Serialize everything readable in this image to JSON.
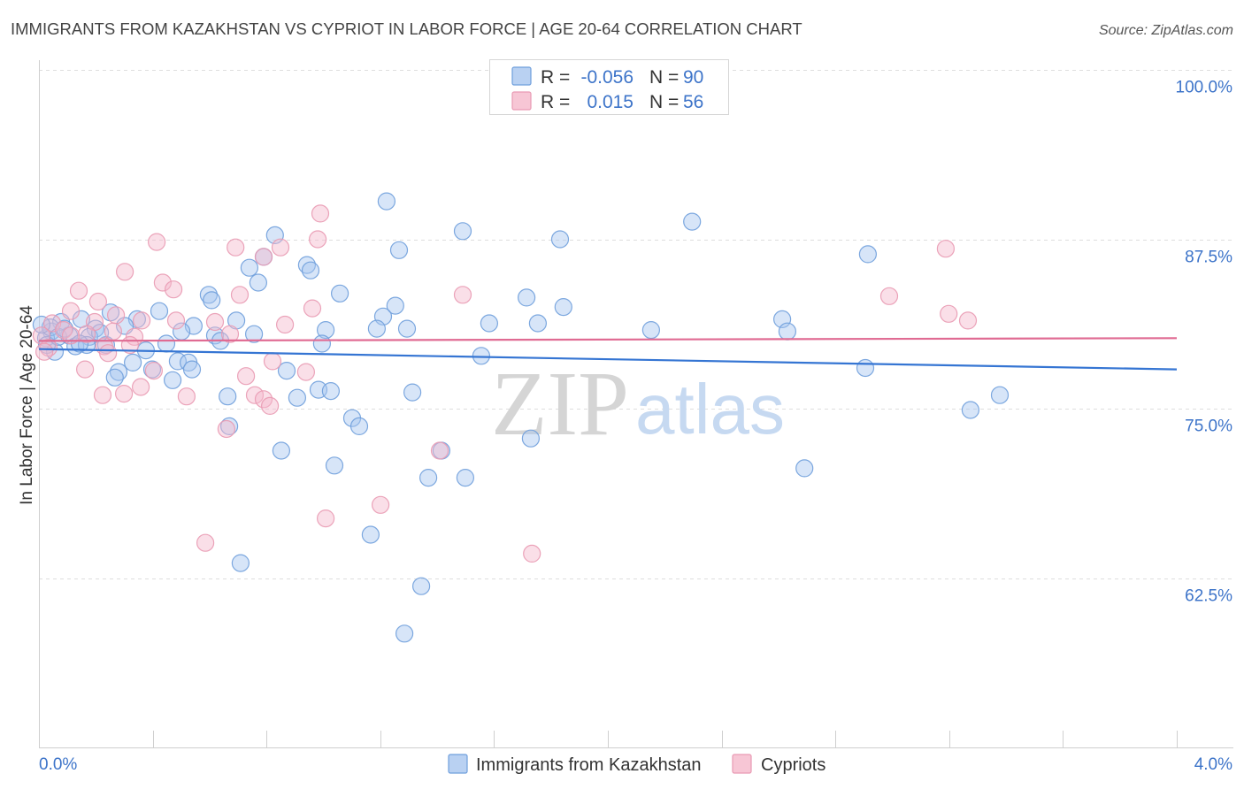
{
  "watermark": {
    "zip": "ZIP",
    "atlas": "atlas"
  },
  "chart_data": {
    "type": "scatter",
    "title": "IMMIGRANTS FROM KAZAKHSTAN VS CYPRIOT IN LABOR FORCE | AGE 20-64 CORRELATION CHART",
    "source": "Source: ZipAtlas.com",
    "xlabel": "",
    "ylabel": "In Labor Force | Age 20-64",
    "xlim": [
      0,
      4.0
    ],
    "ylim": [
      50,
      100
    ],
    "grid": true,
    "legend": "top-center",
    "x_ticks": [
      {
        "value": 0,
        "label": "0.0%"
      },
      {
        "value": 4.0,
        "label": "4.0%"
      }
    ],
    "x_tick_values": [
      0,
      0.4,
      0.8,
      1.2,
      1.6,
      2.0,
      2.4,
      2.8,
      3.2,
      3.6,
      4.0
    ],
    "y_ticks": [
      {
        "value": 100,
        "label": "100.0%"
      },
      {
        "value": 87.5,
        "label": "87.5%"
      },
      {
        "value": 75,
        "label": "75.0%"
      },
      {
        "value": 62.5,
        "label": "62.5%"
      }
    ],
    "series": [
      {
        "name": "Immigrants from Kazakhstan",
        "r_label": "R =",
        "r": "-0.056",
        "n_label": "N =",
        "n": "90",
        "color": "#a7c6ef",
        "stroke": "#6f9fdc",
        "line_color": "#3575d3",
        "trend": {
          "x": [
            0,
            4.0
          ],
          "y": [
            79.4,
            77.9
          ]
        },
        "points": [
          [
            1.222,
            90.3
          ],
          [
            2.296,
            88.8
          ],
          [
            1.49,
            88.1
          ],
          [
            0.83,
            87.8
          ],
          [
            1.832,
            87.5
          ],
          [
            1.266,
            86.7
          ],
          [
            2.914,
            86.4
          ],
          [
            0.79,
            86.2
          ],
          [
            0.74,
            85.4
          ],
          [
            0.942,
            85.6
          ],
          [
            0.955,
            85.2
          ],
          [
            0.771,
            84.3
          ],
          [
            1.058,
            83.5
          ],
          [
            0.597,
            83.4
          ],
          [
            0.607,
            83.0
          ],
          [
            1.714,
            83.2
          ],
          [
            1.253,
            82.6
          ],
          [
            1.844,
            82.5
          ],
          [
            0.423,
            82.2
          ],
          [
            0.252,
            82.1
          ],
          [
            1.21,
            81.8
          ],
          [
            2.613,
            81.6
          ],
          [
            0.149,
            81.6
          ],
          [
            0.345,
            81.6
          ],
          [
            0.694,
            81.5
          ],
          [
            1.583,
            81.3
          ],
          [
            1.754,
            81.3
          ],
          [
            0.078,
            81.4
          ],
          [
            0.302,
            81.1
          ],
          [
            0.544,
            81.1
          ],
          [
            0.501,
            80.7
          ],
          [
            1.008,
            80.8
          ],
          [
            1.188,
            80.9
          ],
          [
            1.294,
            80.9
          ],
          [
            2.152,
            80.8
          ],
          [
            2.631,
            80.7
          ],
          [
            0.199,
            80.9
          ],
          [
            0.756,
            80.5
          ],
          [
            0.619,
            80.4
          ],
          [
            0.638,
            80.0
          ],
          [
            0.177,
            80.3
          ],
          [
            0.044,
            80.7
          ],
          [
            0.025,
            80.2
          ],
          [
            0.106,
            80.4
          ],
          [
            0.236,
            79.7
          ],
          [
            0.448,
            79.8
          ],
          [
            0.376,
            79.3
          ],
          [
            0.995,
            79.8
          ],
          [
            0.128,
            79.6
          ],
          [
            0.168,
            79.7
          ],
          [
            0.056,
            79.2
          ],
          [
            0.028,
            79.7
          ],
          [
            0.33,
            78.4
          ],
          [
            0.488,
            78.5
          ],
          [
            0.526,
            78.4
          ],
          [
            0.538,
            77.9
          ],
          [
            1.555,
            78.9
          ],
          [
            2.905,
            78.0
          ],
          [
            0.28,
            77.7
          ],
          [
            0.398,
            77.9
          ],
          [
            0.267,
            77.3
          ],
          [
            0.871,
            77.8
          ],
          [
            0.47,
            77.1
          ],
          [
            0.983,
            76.4
          ],
          [
            1.026,
            76.3
          ],
          [
            0.908,
            75.8
          ],
          [
            1.313,
            76.2
          ],
          [
            0.663,
            75.9
          ],
          [
            3.378,
            76.0
          ],
          [
            3.275,
            74.9
          ],
          [
            1.101,
            74.3
          ],
          [
            1.126,
            73.7
          ],
          [
            0.669,
            73.7
          ],
          [
            1.729,
            72.8
          ],
          [
            0.852,
            71.9
          ],
          [
            1.415,
            71.9
          ],
          [
            1.039,
            70.8
          ],
          [
            2.691,
            70.6
          ],
          [
            1.369,
            69.9
          ],
          [
            1.499,
            69.9
          ],
          [
            1.166,
            65.7
          ],
          [
            0.709,
            63.6
          ],
          [
            1.344,
            61.9
          ],
          [
            1.285,
            58.4
          ],
          [
            0.04,
            81.0
          ],
          [
            0.068,
            80.3
          ],
          [
            0.009,
            81.2
          ],
          [
            0.09,
            80.9
          ],
          [
            0.215,
            80.6
          ],
          [
            0.143,
            79.8
          ]
        ]
      },
      {
        "name": "Cypriots",
        "r_label": "R =",
        "r": "0.015",
        "n_label": "N =",
        "n": "56",
        "color": "#f5b8cb",
        "stroke": "#e99ab3",
        "line_color": "#e06b93",
        "trend": {
          "x": [
            0,
            4.0
          ],
          "y": [
            80.0,
            80.2
          ]
        },
        "points": [
          [
            0.989,
            89.4
          ],
          [
            0.98,
            87.5
          ],
          [
            0.414,
            87.3
          ],
          [
            0.691,
            86.9
          ],
          [
            0.849,
            86.9
          ],
          [
            3.188,
            86.8
          ],
          [
            0.79,
            86.2
          ],
          [
            0.302,
            85.1
          ],
          [
            0.435,
            84.3
          ],
          [
            0.473,
            83.8
          ],
          [
            0.14,
            83.7
          ],
          [
            0.706,
            83.4
          ],
          [
            1.49,
            83.4
          ],
          [
            2.989,
            83.3
          ],
          [
            0.208,
            82.9
          ],
          [
            0.961,
            82.4
          ],
          [
            0.112,
            82.2
          ],
          [
            3.198,
            82.0
          ],
          [
            3.266,
            81.5
          ],
          [
            0.361,
            81.5
          ],
          [
            0.271,
            81.9
          ],
          [
            0.482,
            81.5
          ],
          [
            0.619,
            81.4
          ],
          [
            0.865,
            81.2
          ],
          [
            0.047,
            81.3
          ],
          [
            0.196,
            81.4
          ],
          [
            0.087,
            80.8
          ],
          [
            0.261,
            80.7
          ],
          [
            0.672,
            80.5
          ],
          [
            0.336,
            80.3
          ],
          [
            0.168,
            80.5
          ],
          [
            0.009,
            80.4
          ],
          [
            0.23,
            79.6
          ],
          [
            0.32,
            79.7
          ],
          [
            0.034,
            79.5
          ],
          [
            0.019,
            79.2
          ],
          [
            0.243,
            79.1
          ],
          [
            0.821,
            78.5
          ],
          [
            0.162,
            77.9
          ],
          [
            0.404,
            77.8
          ],
          [
            0.939,
            77.7
          ],
          [
            0.728,
            77.4
          ],
          [
            0.358,
            76.6
          ],
          [
            0.519,
            75.9
          ],
          [
            0.224,
            76.0
          ],
          [
            0.299,
            76.1
          ],
          [
            0.759,
            76.0
          ],
          [
            0.79,
            75.7
          ],
          [
            0.812,
            75.2
          ],
          [
            0.659,
            73.5
          ],
          [
            1.409,
            71.9
          ],
          [
            1.201,
            67.9
          ],
          [
            1.008,
            66.9
          ],
          [
            0.585,
            65.1
          ],
          [
            1.733,
            64.3
          ],
          [
            0.112,
            80.4
          ]
        ]
      }
    ]
  }
}
